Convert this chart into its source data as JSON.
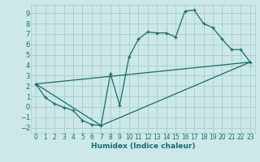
{
  "xlabel": "Humidex (Indice chaleur)",
  "background_color": "#cce8e8",
  "grid_color": "#aacccc",
  "line_color": "#1a6b6b",
  "xlim": [
    -0.5,
    23.5
  ],
  "ylim": [
    -2.5,
    9.8
  ],
  "xticks": [
    0,
    1,
    2,
    3,
    4,
    5,
    6,
    7,
    8,
    9,
    10,
    11,
    12,
    13,
    14,
    15,
    16,
    17,
    18,
    19,
    20,
    21,
    22,
    23
  ],
  "yticks": [
    -2,
    -1,
    0,
    1,
    2,
    3,
    4,
    5,
    6,
    7,
    8,
    9
  ],
  "line1_x": [
    0,
    1,
    2,
    3,
    4,
    5,
    6,
    7,
    8,
    9,
    10,
    11,
    12,
    13,
    14,
    15,
    16,
    17,
    18,
    19,
    20,
    21,
    22,
    23
  ],
  "line1_y": [
    2.2,
    0.9,
    0.3,
    -0.05,
    -0.35,
    -1.3,
    -1.7,
    -1.8,
    3.2,
    0.15,
    4.8,
    6.5,
    7.2,
    7.1,
    7.1,
    6.7,
    9.2,
    9.3,
    8.0,
    7.6,
    6.5,
    5.5,
    5.5,
    4.3
  ],
  "line2_x": [
    0,
    23
  ],
  "line2_y": [
    2.2,
    4.3
  ],
  "line3_x": [
    0,
    7,
    23
  ],
  "line3_y": [
    2.2,
    -1.8,
    4.3
  ]
}
